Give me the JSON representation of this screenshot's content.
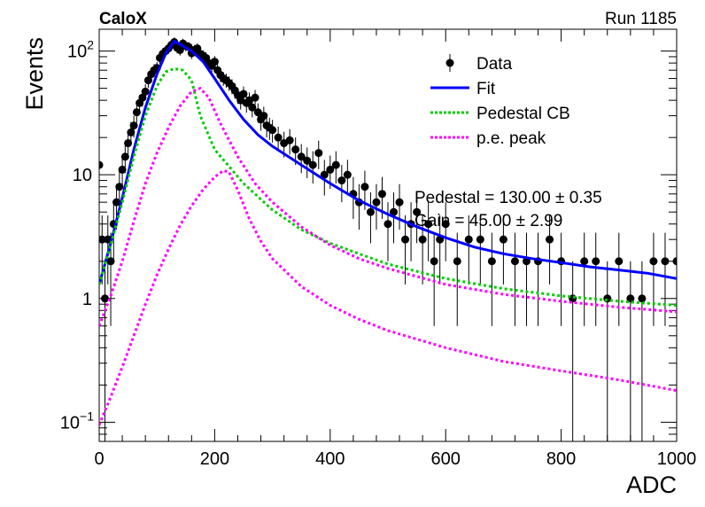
{
  "header": {
    "experiment": "CaloX",
    "run": "Run 1185"
  },
  "chart_data": {
    "type": "scatter",
    "xlabel": "ADC",
    "ylabel": "Events",
    "xlim": [
      0,
      1000
    ],
    "ylim": [
      0.07,
      150
    ],
    "yscale": "log",
    "x_ticks": [
      "0",
      "200",
      "400",
      "600",
      "800",
      "1000"
    ],
    "y_ticks": [
      {
        "value": 0.1,
        "base": "10",
        "exp": "−1"
      },
      {
        "value": 1,
        "label": "1"
      },
      {
        "value": 10,
        "label": "10"
      },
      {
        "value": 100,
        "base": "10",
        "exp": "2"
      }
    ],
    "legend": {
      "position": "top-right",
      "entries": [
        {
          "label": "Data",
          "style": "marker"
        },
        {
          "label": "Fit",
          "style": "line",
          "color": "#0000ff"
        },
        {
          "label": "Pedestal CB",
          "style": "dotted",
          "color": "#00cc00"
        },
        {
          "label": "p.e. peak",
          "style": "dotted",
          "color": "#ff00ff"
        }
      ]
    },
    "annotations": [
      "Pedestal = 130.00 ± 0.35",
      "Gain = 45.00 ± 2.99"
    ],
    "series": [
      {
        "name": "Fit",
        "color": "#0000ff",
        "x": [
          0,
          20,
          40,
          60,
          80,
          100,
          115,
          130,
          145,
          160,
          180,
          200,
          225,
          250,
          275,
          300,
          350,
          400,
          450,
          500,
          550,
          600,
          650,
          700,
          750,
          800,
          850,
          900,
          950,
          1000
        ],
        "y": [
          1.3,
          2.8,
          6.5,
          16,
          35,
          65,
          95,
          120,
          110,
          100,
          82,
          60,
          40,
          28,
          21,
          17,
          12,
          8.5,
          6.2,
          4.8,
          3.8,
          3.1,
          2.6,
          2.3,
          2.1,
          1.95,
          1.8,
          1.7,
          1.6,
          1.45
        ]
      },
      {
        "name": "Pedestal CB",
        "color": "#00cc00",
        "x": [
          0,
          20,
          40,
          60,
          80,
          100,
          115,
          130,
          145,
          160,
          175,
          200,
          250,
          300,
          350,
          400,
          450,
          500,
          600,
          700,
          800,
          900,
          1000
        ],
        "y": [
          1.3,
          2.7,
          6,
          14,
          30,
          52,
          68,
          72,
          70,
          58,
          30,
          16,
          8.5,
          5.2,
          3.6,
          2.8,
          2.3,
          1.9,
          1.45,
          1.2,
          1.05,
          0.95,
          0.88
        ]
      },
      {
        "name": "p.e. peak",
        "color": "#ff00ff",
        "x": [
          0,
          20,
          40,
          60,
          80,
          100,
          120,
          140,
          160,
          175,
          190,
          210,
          240,
          270,
          300,
          350,
          400,
          450,
          500,
          600,
          700,
          800,
          900,
          1000
        ],
        "y": [
          0.6,
          1.05,
          2.0,
          4.2,
          8.5,
          15,
          24,
          36,
          47,
          50,
          42,
          26,
          14,
          8.5,
          6,
          3.8,
          2.7,
          2.1,
          1.75,
          1.3,
          1.08,
          0.95,
          0.85,
          0.78
        ]
      },
      {
        "name": "p.e. peak 2",
        "color": "#ff00ff",
        "x": [
          0,
          20,
          40,
          60,
          80,
          100,
          120,
          140,
          160,
          180,
          200,
          215,
          225,
          240,
          260,
          280,
          300,
          350,
          400,
          450,
          500,
          600,
          700,
          800,
          900,
          1000
        ],
        "y": [
          0.095,
          0.16,
          0.28,
          0.5,
          0.9,
          1.55,
          2.5,
          3.9,
          5.6,
          7.6,
          9.6,
          10.8,
          10.5,
          7.5,
          4.4,
          2.9,
          2.1,
          1.25,
          0.88,
          0.68,
          0.55,
          0.4,
          0.31,
          0.26,
          0.22,
          0.18
        ]
      }
    ],
    "data": {
      "name": "Data",
      "x": [
        0,
        5,
        10,
        15,
        20,
        25,
        30,
        35,
        40,
        45,
        50,
        55,
        60,
        65,
        70,
        75,
        80,
        85,
        90,
        95,
        100,
        105,
        110,
        115,
        120,
        125,
        130,
        135,
        140,
        145,
        150,
        155,
        160,
        165,
        170,
        175,
        180,
        185,
        190,
        195,
        200,
        205,
        210,
        215,
        220,
        225,
        230,
        235,
        240,
        245,
        250,
        255,
        260,
        265,
        270,
        275,
        280,
        285,
        290,
        295,
        300,
        310,
        320,
        330,
        340,
        350,
        360,
        370,
        380,
        390,
        400,
        410,
        420,
        430,
        440,
        450,
        460,
        470,
        480,
        490,
        500,
        510,
        520,
        530,
        540,
        550,
        560,
        570,
        580,
        590,
        600,
        620,
        640,
        660,
        680,
        700,
        720,
        740,
        760,
        780,
        800,
        820,
        840,
        860,
        880,
        900,
        920,
        940,
        960,
        980,
        1000
      ],
      "y": [
        12,
        3,
        1,
        3,
        2,
        4,
        6,
        8,
        11,
        14,
        18,
        22,
        25,
        32,
        38,
        42,
        47,
        58,
        65,
        70,
        73,
        88,
        95,
        100,
        105,
        112,
        118,
        106,
        102,
        115,
        110,
        108,
        96,
        102,
        105,
        95,
        92,
        88,
        80,
        76,
        82,
        70,
        64,
        60,
        58,
        55,
        52,
        48,
        44,
        40,
        45,
        38,
        40,
        35,
        42,
        32,
        28,
        30,
        25,
        24,
        23,
        20,
        18,
        19,
        16,
        14,
        13,
        12,
        15,
        10,
        11,
        12,
        9,
        10,
        7,
        6,
        8,
        5,
        6,
        7,
        4,
        5,
        6,
        3,
        4,
        5,
        3,
        4,
        2,
        3,
        4,
        2,
        3,
        3,
        2,
        3,
        2,
        2,
        2,
        3,
        2,
        1,
        2,
        2,
        1,
        2,
        1,
        1,
        2,
        2,
        2
      ],
      "yerr": [
        3.5,
        1.7,
        1,
        1.7,
        1.4,
        2,
        2.4,
        2.8,
        3.3,
        3.7,
        4.2,
        4.7,
        5,
        5.7,
        6.2,
        6.5,
        6.9,
        7.6,
        8.1,
        8.4,
        8.5,
        9.4,
        9.7,
        10,
        10.2,
        10.6,
        10.9,
        10.3,
        10.1,
        10.7,
        10.5,
        10.4,
        9.8,
        10.1,
        10.2,
        9.7,
        9.6,
        9.4,
        8.9,
        8.7,
        9.1,
        8.4,
        8,
        7.7,
        7.6,
        7.4,
        7.2,
        6.9,
        6.6,
        6.3,
        6.7,
        6.2,
        6.3,
        5.9,
        6.5,
        5.7,
        5.3,
        5.5,
        5,
        4.9,
        4.8,
        4.5,
        4.2,
        4.4,
        4,
        3.7,
        3.6,
        3.5,
        3.9,
        3.2,
        3.3,
        3.5,
        3,
        3.2,
        2.6,
        2.4,
        2.8,
        2.2,
        2.4,
        2.6,
        2,
        2.2,
        2.4,
        1.7,
        2,
        2.2,
        1.7,
        2,
        1.4,
        1.7,
        2,
        1.4,
        1.7,
        1.7,
        1.4,
        1.7,
        1.4,
        1.4,
        1.4,
        1.7,
        1.4,
        1,
        1.4,
        1.4,
        1,
        1.4,
        1,
        1,
        1.4,
        1.4,
        1.4
      ]
    }
  }
}
